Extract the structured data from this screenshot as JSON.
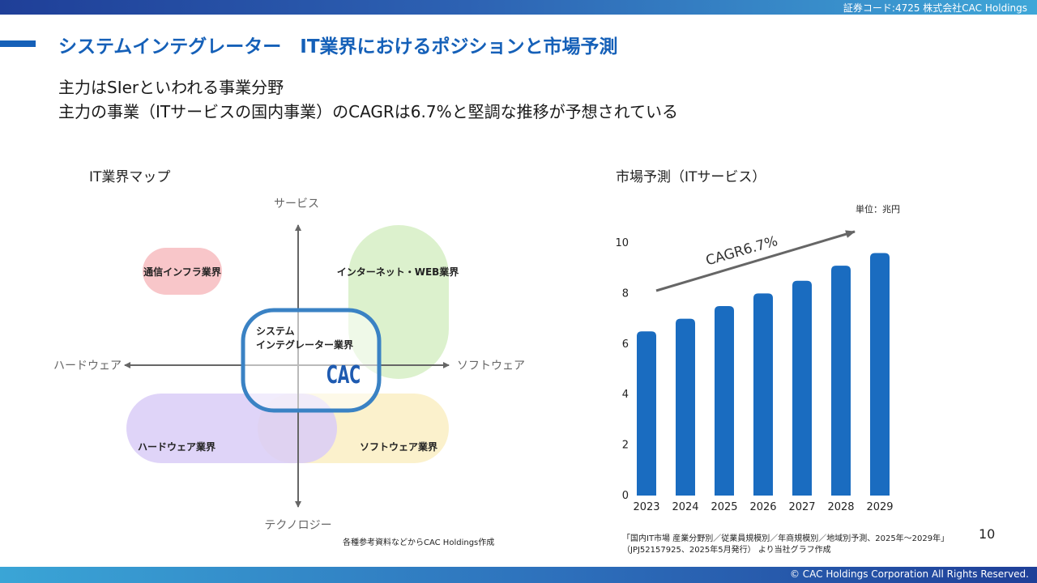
{
  "header": {
    "stock_code": "証券コード:4725  株式会社CAC Holdings"
  },
  "footer": {
    "copyright": "© CAC Holdings Corporation All Rights Reserved."
  },
  "page": {
    "title": "システムインテグレーター　IT業界におけるポジションと市場予測",
    "lead_line1": "主力はSIerといわれる事業分野",
    "lead_line2": "主力の事業（ITサービスの国内事業）のCAGRは6.7%と堅調な推移が予想されている",
    "page_number": "10"
  },
  "map": {
    "section_title": "IT業界マップ",
    "axis_top": "サービス",
    "axis_bottom": "テクノロジー",
    "axis_left": "ハードウェア",
    "axis_right": "ソフトウェア",
    "telecom": "通信インフラ業界",
    "internet": "インターネット・WEB業界",
    "si_line1": "システム",
    "si_line2": "インテグレーター業界",
    "logo": "CAC",
    "hardware": "ハードウェア業界",
    "software": "ソフトウェア業界",
    "source": "各種参考資料などからCAC Holdings作成",
    "colors": {
      "telecom": "#f8c6c9",
      "internet": "#d8f0c8",
      "hardware": "#d9cdf7",
      "software": "#fbefc6",
      "si_border": "#3a82c4",
      "logo": "#1e5ab0"
    }
  },
  "market": {
    "section_title": "市場予測（ITサービス）",
    "unit": "単位：兆円",
    "cagr_label": "CAGR6.7%",
    "source_line1": "「国内IT市場 産業分野別／従業員規模別／年商規模別／地域別予測、2025年～2029年」",
    "source_line2": "（JPJ52157925、2025年5月発行） より当社グラフ作成"
  },
  "chart_data": {
    "type": "bar",
    "categories": [
      "2023",
      "2024",
      "2025",
      "2026",
      "2027",
      "2028",
      "2029"
    ],
    "values": [
      6.5,
      7.0,
      7.5,
      8.0,
      8.5,
      9.1,
      9.6
    ],
    "y_ticks": [
      "0",
      "2",
      "4",
      "6",
      "8",
      "10"
    ],
    "ylim": [
      0,
      10
    ],
    "bar_color": "#1a6cc0",
    "arrow_color": "#666666"
  }
}
